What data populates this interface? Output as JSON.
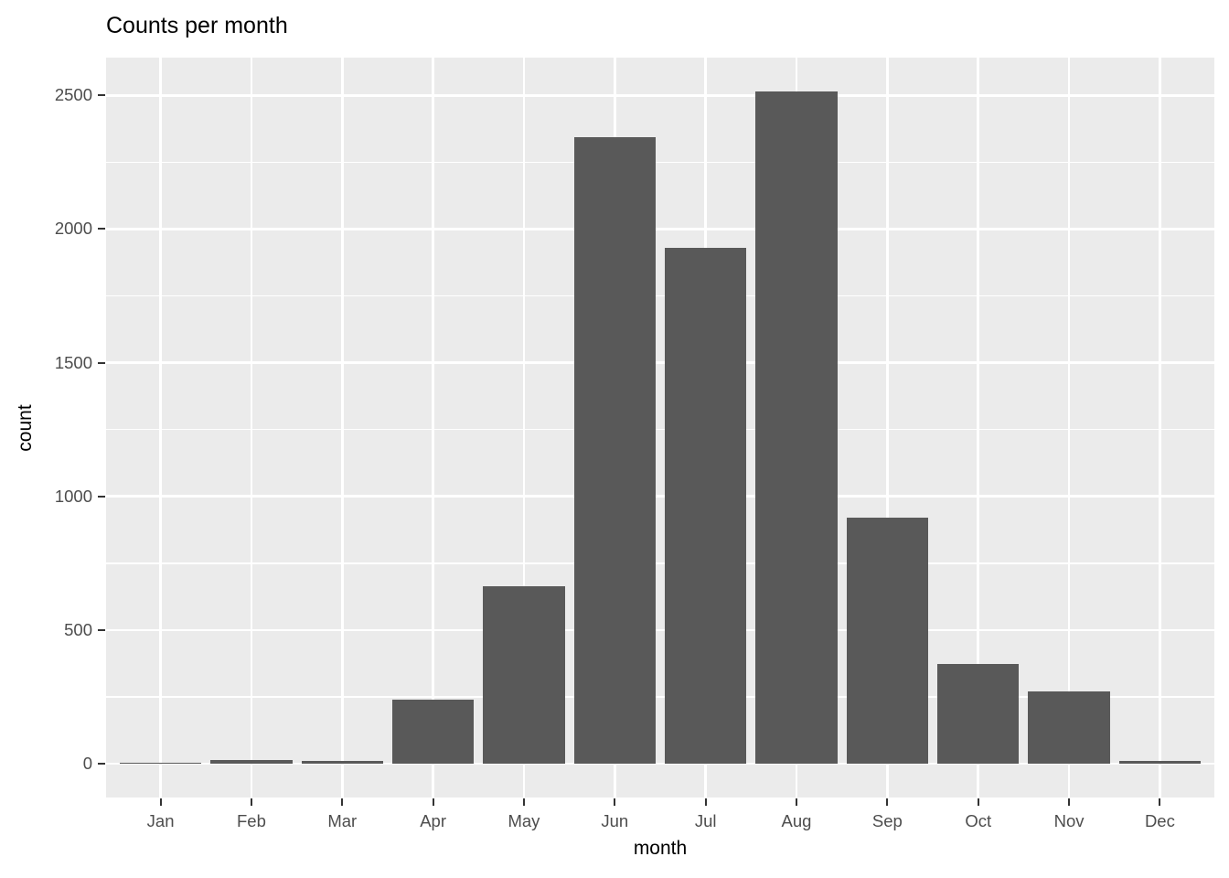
{
  "chart_data": {
    "type": "bar",
    "title": "Counts per month",
    "xlabel": "month",
    "ylabel": "count",
    "categories": [
      "Jan",
      "Feb",
      "Mar",
      "Apr",
      "May",
      "Jun",
      "Jul",
      "Aug",
      "Sep",
      "Oct",
      "Nov",
      "Dec"
    ],
    "values": [
      5,
      13,
      10,
      240,
      665,
      2345,
      1930,
      2515,
      920,
      375,
      270,
      10
    ],
    "yticks": [
      0,
      500,
      1000,
      1500,
      2000,
      2500
    ],
    "yminor": [
      250,
      750,
      1250,
      1750,
      2250
    ],
    "ylim": [
      -126,
      2641
    ],
    "bar_width_ratio": 0.9,
    "grid": "on",
    "legend": "none",
    "colors": {
      "bar_fill": "#595959",
      "panel_bg": "#EBEBEB",
      "grid_major": "#FFFFFF",
      "grid_minor": "#FFFFFF",
      "tick_label": "#4D4D4D",
      "tick_mark": "#333333",
      "title": "#000000",
      "axis_title": "#000000",
      "background": "#FFFFFF"
    }
  }
}
